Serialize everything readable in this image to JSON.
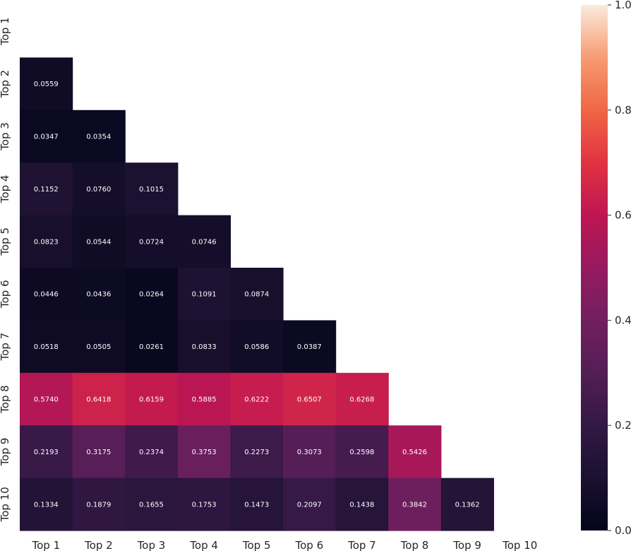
{
  "chart_data": {
    "type": "heatmap",
    "title": "",
    "xlabel": "",
    "ylabel": "",
    "x_categories": [
      "Top 1",
      "Top 2",
      "Top 3",
      "Top 4",
      "Top 5",
      "Top 6",
      "Top 7",
      "Top 8",
      "Top 9",
      "Top 10"
    ],
    "y_categories": [
      "Top 1",
      "Top 2",
      "Top 3",
      "Top 4",
      "Top 5",
      "Top 6",
      "Top 7",
      "Top 8",
      "Top 9",
      "Top 10"
    ],
    "mask": "upper triangle including diagonal",
    "values": [
      [
        null,
        null,
        null,
        null,
        null,
        null,
        null,
        null,
        null,
        null
      ],
      [
        "0.0559",
        null,
        null,
        null,
        null,
        null,
        null,
        null,
        null,
        null
      ],
      [
        "0.0347",
        "0.0354",
        null,
        null,
        null,
        null,
        null,
        null,
        null,
        null
      ],
      [
        "0.1152",
        "0.0760",
        "0.1015",
        null,
        null,
        null,
        null,
        null,
        null,
        null
      ],
      [
        "0.0823",
        "0.0544",
        "0.0724",
        "0.0746",
        null,
        null,
        null,
        null,
        null,
        null
      ],
      [
        "0.0446",
        "0.0436",
        "0.0264",
        "0.1091",
        "0.0874",
        null,
        null,
        null,
        null,
        null
      ],
      [
        "0.0518",
        "0.0505",
        "0.0261",
        "0.0833",
        "0.0586",
        "0.0387",
        null,
        null,
        null,
        null
      ],
      [
        "0.5740",
        "0.6418",
        "0.6159",
        "0.5885",
        "0.6222",
        "0.6507",
        "0.6268",
        null,
        null,
        null
      ],
      [
        "0.2193",
        "0.3175",
        "0.2374",
        "0.3753",
        "0.2273",
        "0.3073",
        "0.2598",
        "0.5426",
        null,
        null
      ],
      [
        "0.1334",
        "0.1879",
        "0.1655",
        "0.1753",
        "0.1473",
        "0.2097",
        "0.1438",
        "0.3842",
        "0.1362",
        null
      ]
    ],
    "colorbar": {
      "colormap": "rocket",
      "range": [
        0.0,
        1.0
      ],
      "ticks": [
        "0.0",
        "0.2",
        "0.4",
        "0.6",
        "0.8",
        "1.0"
      ]
    },
    "grid": false
  }
}
